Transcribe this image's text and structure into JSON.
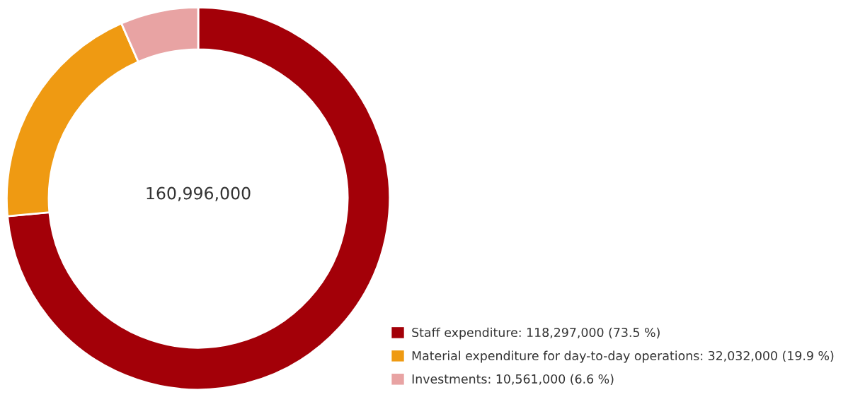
{
  "chart_data": {
    "type": "donut",
    "categories": [
      "Staff expenditure: 118,297,000 (73.5 %)",
      "Material expenditure for day-to-day operations: 32,032,000 (19.9 %)",
      "Investments: 10,561,000 (6.6 %)"
    ],
    "values": [
      118297000,
      32032000,
      10561000
    ],
    "colors": [
      "#a30008",
      "#ef9a12",
      "#e8a3a3"
    ],
    "annotations": [
      "160,996,000"
    ],
    "legend": "bottom right"
  }
}
